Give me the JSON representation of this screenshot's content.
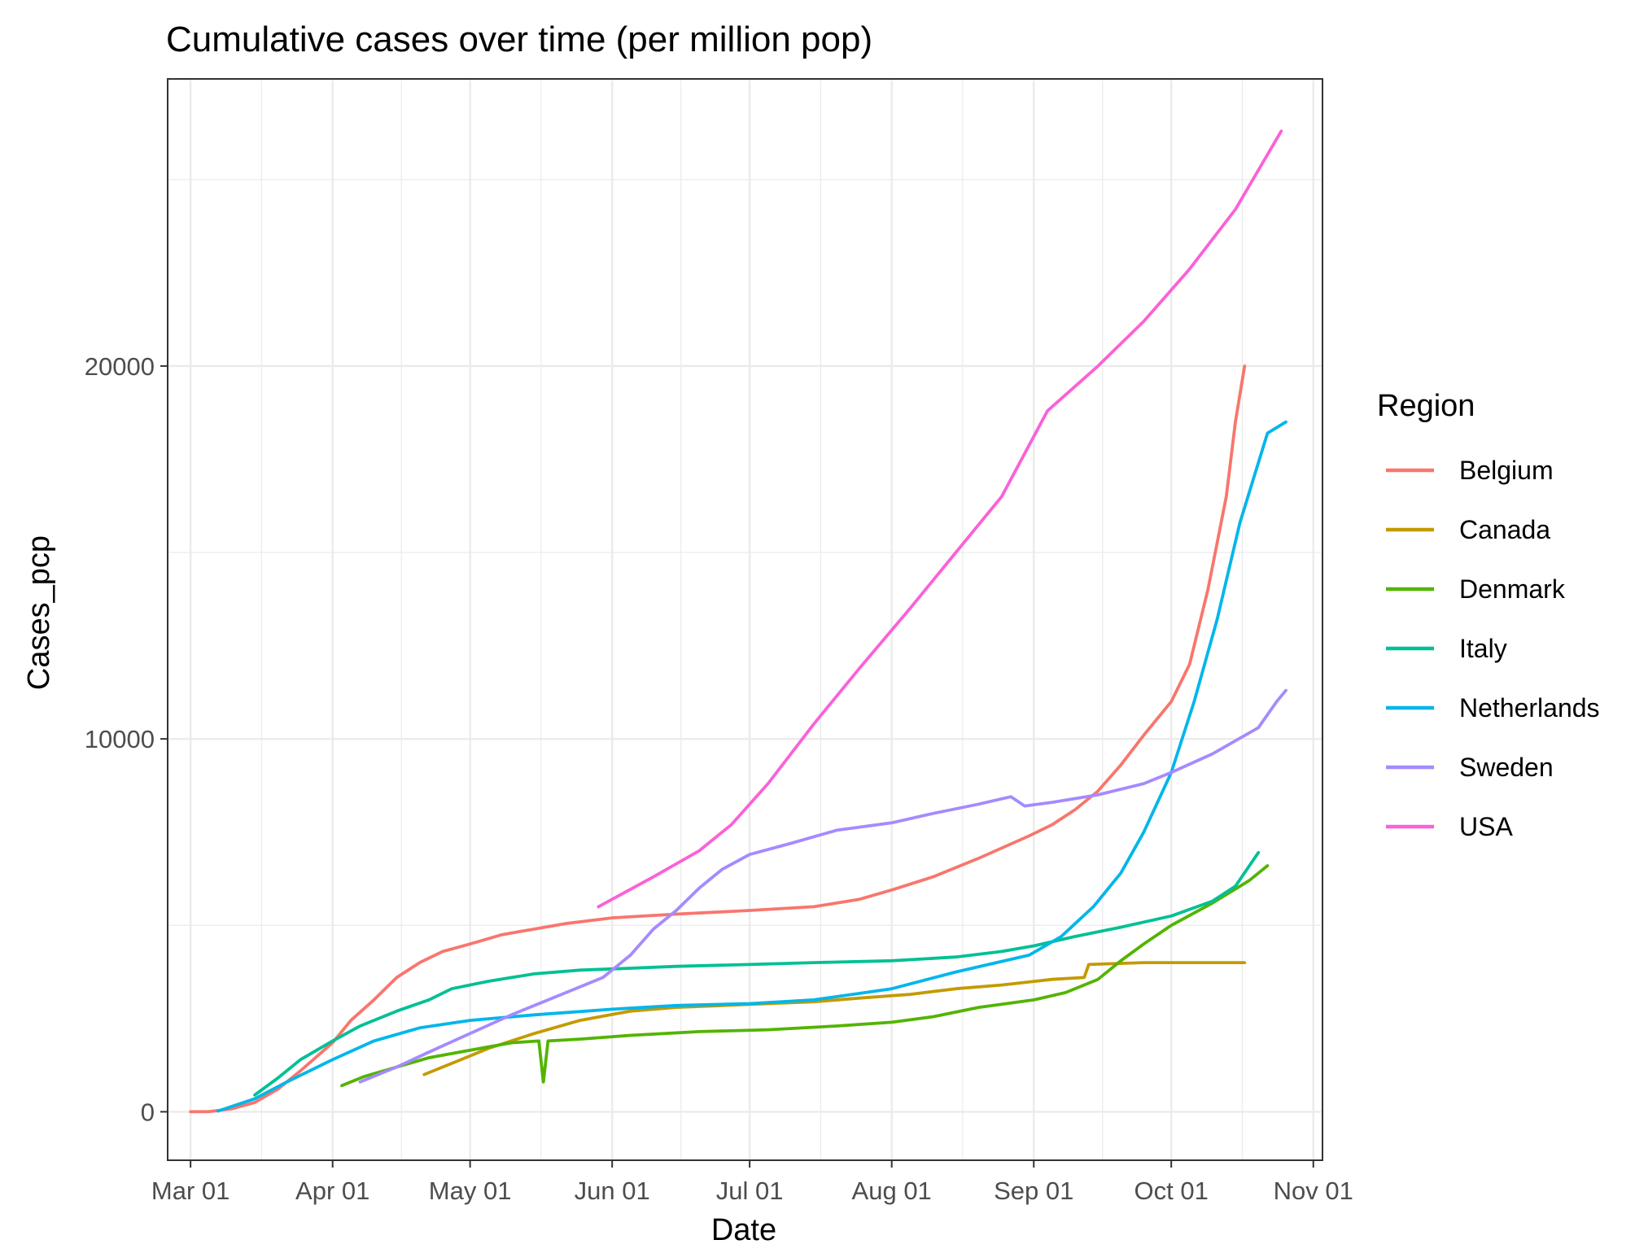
{
  "chart_data": {
    "type": "line",
    "title": "Cumulative cases over time (per million pop)",
    "xlabel": "Date",
    "ylabel": "Cases_pcp",
    "x_axis_type": "date",
    "xlim": [
      "2020-02-25",
      "2020-11-03"
    ],
    "ylim": [
      -1300,
      27700
    ],
    "x_ticks": [
      "2020-03-01",
      "2020-04-01",
      "2020-05-01",
      "2020-06-01",
      "2020-07-01",
      "2020-08-01",
      "2020-09-01",
      "2020-10-01",
      "2020-11-01"
    ],
    "x_tick_labels": [
      "Mar 01",
      "Apr 01",
      "May 01",
      "Jun 01",
      "Jul 01",
      "Aug 01",
      "Sep 01",
      "Oct 01",
      "Nov 01"
    ],
    "y_ticks": [
      0,
      10000,
      20000
    ],
    "y_tick_labels": [
      "0",
      "10000",
      "20000"
    ],
    "y_minor_ticks": [
      5000,
      15000,
      25000
    ],
    "grid": true,
    "legend": {
      "title": "Region",
      "position": "right"
    },
    "series": [
      {
        "name": "Belgium",
        "color": "#F8766D",
        "points": [
          [
            "2020-03-01",
            0
          ],
          [
            "2020-03-05",
            5
          ],
          [
            "2020-03-10",
            80
          ],
          [
            "2020-03-15",
            250
          ],
          [
            "2020-03-20",
            600
          ],
          [
            "2020-03-25",
            1100
          ],
          [
            "2020-04-01",
            1850
          ],
          [
            "2020-04-05",
            2450
          ],
          [
            "2020-04-10",
            3000
          ],
          [
            "2020-04-15",
            3600
          ],
          [
            "2020-04-20",
            4000
          ],
          [
            "2020-04-25",
            4300
          ],
          [
            "2020-05-01",
            4500
          ],
          [
            "2020-05-08",
            4750
          ],
          [
            "2020-05-15",
            4900
          ],
          [
            "2020-05-22",
            5050
          ],
          [
            "2020-06-01",
            5200
          ],
          [
            "2020-06-15",
            5300
          ],
          [
            "2020-07-01",
            5400
          ],
          [
            "2020-07-15",
            5500
          ],
          [
            "2020-07-25",
            5700
          ],
          [
            "2020-08-01",
            5950
          ],
          [
            "2020-08-10",
            6300
          ],
          [
            "2020-08-20",
            6800
          ],
          [
            "2020-08-31",
            7400
          ],
          [
            "2020-09-05",
            7700
          ],
          [
            "2020-09-10",
            8100
          ],
          [
            "2020-09-15",
            8600
          ],
          [
            "2020-09-20",
            9300
          ],
          [
            "2020-09-25",
            10100
          ],
          [
            "2020-10-01",
            11000
          ],
          [
            "2020-10-05",
            12000
          ],
          [
            "2020-10-09",
            14000
          ],
          [
            "2020-10-13",
            16500
          ],
          [
            "2020-10-15",
            18500
          ],
          [
            "2020-10-17",
            20000
          ]
        ]
      },
      {
        "name": "Canada",
        "color": "#C49A00",
        "points": [
          [
            "2020-04-21",
            1000
          ],
          [
            "2020-04-28",
            1350
          ],
          [
            "2020-05-05",
            1700
          ],
          [
            "2020-05-15",
            2100
          ],
          [
            "2020-05-25",
            2450
          ],
          [
            "2020-06-05",
            2700
          ],
          [
            "2020-06-15",
            2800
          ],
          [
            "2020-06-25",
            2850
          ],
          [
            "2020-07-05",
            2900
          ],
          [
            "2020-07-15",
            2950
          ],
          [
            "2020-07-25",
            3050
          ],
          [
            "2020-08-05",
            3150
          ],
          [
            "2020-08-15",
            3300
          ],
          [
            "2020-08-25",
            3400
          ],
          [
            "2020-09-05",
            3550
          ],
          [
            "2020-09-12",
            3600
          ],
          [
            "2020-09-13",
            3950
          ],
          [
            "2020-09-25",
            4000
          ],
          [
            "2020-10-10",
            4000
          ],
          [
            "2020-10-17",
            4000
          ]
        ]
      },
      {
        "name": "Denmark",
        "color": "#53B400",
        "points": [
          [
            "2020-04-03",
            700
          ],
          [
            "2020-04-08",
            950
          ],
          [
            "2020-04-15",
            1200
          ],
          [
            "2020-04-22",
            1450
          ],
          [
            "2020-05-01",
            1650
          ],
          [
            "2020-05-10",
            1850
          ],
          [
            "2020-05-16",
            1900
          ],
          [
            "2020-05-17",
            800
          ],
          [
            "2020-05-18",
            1900
          ],
          [
            "2020-05-25",
            1950
          ],
          [
            "2020-06-05",
            2050
          ],
          [
            "2020-06-20",
            2150
          ],
          [
            "2020-07-05",
            2200
          ],
          [
            "2020-07-20",
            2300
          ],
          [
            "2020-08-01",
            2400
          ],
          [
            "2020-08-10",
            2550
          ],
          [
            "2020-08-20",
            2800
          ],
          [
            "2020-09-01",
            3000
          ],
          [
            "2020-09-08",
            3200
          ],
          [
            "2020-09-15",
            3550
          ],
          [
            "2020-09-20",
            4050
          ],
          [
            "2020-09-25",
            4500
          ],
          [
            "2020-10-01",
            5000
          ],
          [
            "2020-10-10",
            5600
          ],
          [
            "2020-10-18",
            6200
          ],
          [
            "2020-10-22",
            6600
          ]
        ]
      },
      {
        "name": "Italy",
        "color": "#00C094",
        "points": [
          [
            "2020-03-15",
            450
          ],
          [
            "2020-03-20",
            900
          ],
          [
            "2020-03-25",
            1400
          ],
          [
            "2020-04-01",
            1900
          ],
          [
            "2020-04-07",
            2300
          ],
          [
            "2020-04-15",
            2700
          ],
          [
            "2020-04-22",
            3000
          ],
          [
            "2020-04-27",
            3300
          ],
          [
            "2020-05-05",
            3500
          ],
          [
            "2020-05-15",
            3700
          ],
          [
            "2020-05-25",
            3800
          ],
          [
            "2020-06-05",
            3850
          ],
          [
            "2020-06-15",
            3900
          ],
          [
            "2020-07-01",
            3950
          ],
          [
            "2020-07-15",
            4000
          ],
          [
            "2020-08-01",
            4050
          ],
          [
            "2020-08-15",
            4150
          ],
          [
            "2020-08-25",
            4300
          ],
          [
            "2020-09-01",
            4450
          ],
          [
            "2020-09-10",
            4700
          ],
          [
            "2020-09-20",
            4950
          ],
          [
            "2020-10-01",
            5250
          ],
          [
            "2020-10-10",
            5650
          ],
          [
            "2020-10-15",
            6050
          ],
          [
            "2020-10-20",
            6950
          ]
        ]
      },
      {
        "name": "Netherlands",
        "color": "#00B6EB",
        "points": [
          [
            "2020-03-07",
            20
          ],
          [
            "2020-03-15",
            350
          ],
          [
            "2020-03-22",
            800
          ],
          [
            "2020-04-01",
            1400
          ],
          [
            "2020-04-10",
            1900
          ],
          [
            "2020-04-20",
            2250
          ],
          [
            "2020-05-01",
            2450
          ],
          [
            "2020-05-15",
            2600
          ],
          [
            "2020-06-01",
            2750
          ],
          [
            "2020-06-15",
            2850
          ],
          [
            "2020-07-01",
            2900
          ],
          [
            "2020-07-15",
            3000
          ],
          [
            "2020-08-01",
            3300
          ],
          [
            "2020-08-15",
            3750
          ],
          [
            "2020-08-31",
            4200
          ],
          [
            "2020-09-07",
            4700
          ],
          [
            "2020-09-14",
            5500
          ],
          [
            "2020-09-20",
            6400
          ],
          [
            "2020-09-25",
            7500
          ],
          [
            "2020-10-01",
            9100
          ],
          [
            "2020-10-06",
            11000
          ],
          [
            "2020-10-11",
            13200
          ],
          [
            "2020-10-16",
            15800
          ],
          [
            "2020-10-22",
            18200
          ],
          [
            "2020-10-26",
            18500
          ]
        ]
      },
      {
        "name": "Sweden",
        "color": "#A58AFF",
        "points": [
          [
            "2020-04-07",
            800
          ],
          [
            "2020-04-15",
            1200
          ],
          [
            "2020-04-22",
            1600
          ],
          [
            "2020-05-01",
            2100
          ],
          [
            "2020-05-10",
            2600
          ],
          [
            "2020-05-20",
            3100
          ],
          [
            "2020-05-30",
            3600
          ],
          [
            "2020-06-05",
            4200
          ],
          [
            "2020-06-10",
            4900
          ],
          [
            "2020-06-15",
            5400
          ],
          [
            "2020-06-20",
            6000
          ],
          [
            "2020-06-25",
            6500
          ],
          [
            "2020-07-01",
            6900
          ],
          [
            "2020-07-10",
            7200
          ],
          [
            "2020-07-20",
            7550
          ],
          [
            "2020-08-01",
            7750
          ],
          [
            "2020-08-10",
            8000
          ],
          [
            "2020-08-20",
            8250
          ],
          [
            "2020-08-27",
            8450
          ],
          [
            "2020-08-30",
            8200
          ],
          [
            "2020-09-05",
            8300
          ],
          [
            "2020-09-15",
            8500
          ],
          [
            "2020-09-25",
            8800
          ],
          [
            "2020-10-01",
            9100
          ],
          [
            "2020-10-10",
            9600
          ],
          [
            "2020-10-20",
            10300
          ],
          [
            "2020-10-24",
            11000
          ],
          [
            "2020-10-26",
            11300
          ]
        ]
      },
      {
        "name": "USA",
        "color": "#FB61D7",
        "points": [
          [
            "2020-05-29",
            5500
          ],
          [
            "2020-06-10",
            6300
          ],
          [
            "2020-06-20",
            7000
          ],
          [
            "2020-06-27",
            7700
          ],
          [
            "2020-07-05",
            8800
          ],
          [
            "2020-07-15",
            10400
          ],
          [
            "2020-07-25",
            11900
          ],
          [
            "2020-08-05",
            13500
          ],
          [
            "2020-08-15",
            15000
          ],
          [
            "2020-08-25",
            16500
          ],
          [
            "2020-09-04",
            18800
          ],
          [
            "2020-09-15",
            20000
          ],
          [
            "2020-09-25",
            21200
          ],
          [
            "2020-10-05",
            22600
          ],
          [
            "2020-10-15",
            24200
          ],
          [
            "2020-10-25",
            26300
          ]
        ]
      }
    ]
  }
}
